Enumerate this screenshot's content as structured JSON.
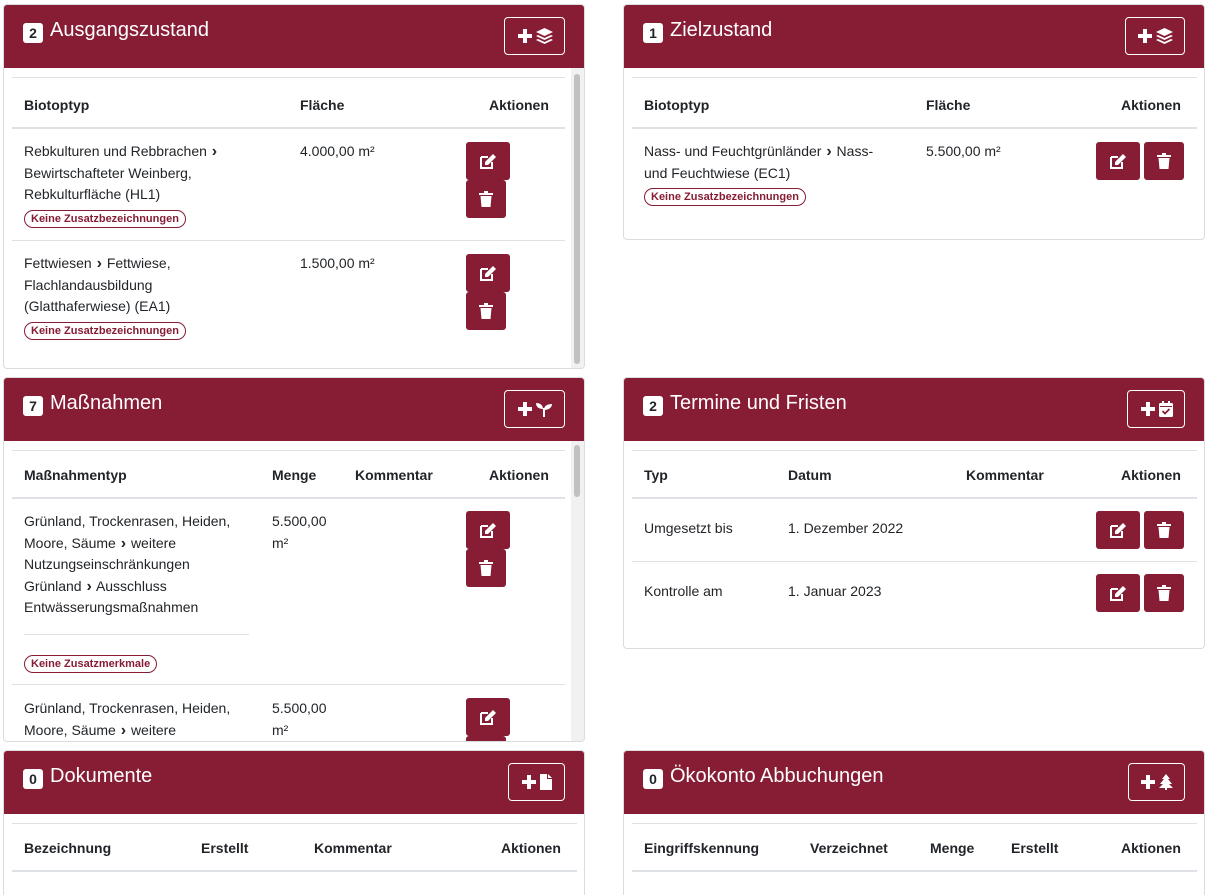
{
  "colors": {
    "primary": "#861d34",
    "border": "#dee2e6"
  },
  "ausgang": {
    "count": "2",
    "title": "Ausgangszustand",
    "add_icons": [
      "plus-icon",
      "layers-icon"
    ],
    "columns": {
      "type": "Biotoptyp",
      "area": "Fläche",
      "actions": "Aktionen"
    },
    "rows": [
      {
        "type_a": "Rebkulturen und Rebbrachen",
        "type_b1": "Bewirtschafteter Weinberg,",
        "type_b2": "Rebkulturfläche (HL1)",
        "area": "4.000,00 m²",
        "tag": "Keine Zusatzbezeichnungen"
      },
      {
        "type_a": "Fettwiesen",
        "type_b1": "Fettwiese,",
        "type_b2": "Flachlandausbildung",
        "type_b3": "(Glatthaferwiese) (EA1)",
        "area": "1.500,00 m²",
        "tag": "Keine Zusatzbezeichnungen"
      }
    ]
  },
  "ziel": {
    "count": "1",
    "title": "Zielzustand",
    "add_icons": [
      "plus-icon",
      "layers-icon"
    ],
    "columns": {
      "type": "Biotoptyp",
      "area": "Fläche",
      "actions": "Aktionen"
    },
    "rows": [
      {
        "type_a": "Nass- und Feuchtgrünländer",
        "type_b1": "Nass-",
        "type_b2": "und Feuchtwiese (EC1)",
        "area": "5.500,00 m²",
        "tag": "Keine Zusatzbezeichnungen"
      }
    ]
  },
  "massnahmen": {
    "count": "7",
    "title": "Maßnahmen",
    "add_icons": [
      "plus-icon",
      "seedling-icon"
    ],
    "columns": {
      "type": "Maßnahmentyp",
      "amount": "Menge",
      "comment": "Kommentar",
      "actions": "Aktionen"
    },
    "rows": [
      {
        "l1": "Grünland, Trockenrasen, Heiden,",
        "l2a": "Moore, Säume",
        "l2b": "weitere",
        "l3": "Nutzungseinschränkungen",
        "l4a": "Grünland",
        "l4b": "Ausschluss",
        "l5": "Entwässerungsmaßnahmen",
        "amount_a": "5.500,00",
        "amount_b": "m²",
        "tag": "Keine Zusatzmerkmale"
      },
      {
        "l1": "Grünland, Trockenrasen, Heiden,",
        "l2a": "Moore, Säume",
        "l2b": "weitere",
        "amount_a": "5.500,00",
        "amount_b": "m²"
      }
    ]
  },
  "termine": {
    "count": "2",
    "title": "Termine und Fristen",
    "add_icons": [
      "plus-icon",
      "calendar-check-icon"
    ],
    "columns": {
      "type": "Typ",
      "date": "Datum",
      "comment": "Kommentar",
      "actions": "Aktionen"
    },
    "rows": [
      {
        "type": "Umgesetzt bis",
        "date": "1. Dezember 2022"
      },
      {
        "type": "Kontrolle am",
        "date": "1. Januar 2023"
      }
    ]
  },
  "dokumente": {
    "count": "0",
    "title": "Dokumente",
    "add_icons": [
      "plus-icon",
      "file-icon"
    ],
    "columns": {
      "name": "Bezeichnung",
      "created": "Erstellt",
      "comment": "Kommentar",
      "actions": "Aktionen"
    }
  },
  "oekokonto": {
    "count": "0",
    "title": "Ökokonto Abbuchungen",
    "add_icons": [
      "plus-icon",
      "tree-icon"
    ],
    "columns": {
      "id": "Eingriffskennung",
      "recorded": "Verzeichnet",
      "amount": "Menge",
      "created": "Erstellt",
      "actions": "Aktionen"
    }
  }
}
